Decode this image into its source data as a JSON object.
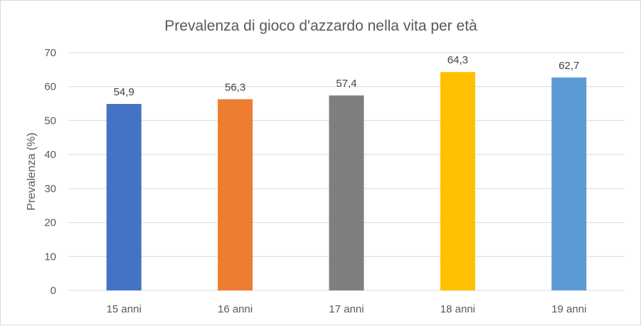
{
  "chart_data": {
    "type": "bar",
    "title": "Prevalenza di gioco d'azzardo nella vita per età",
    "ylabel": "Prevalenza (%)",
    "xlabel": "",
    "categories": [
      "15 anni",
      "16 anni",
      "17 anni",
      "18 anni",
      "19 anni"
    ],
    "values": [
      54.9,
      56.3,
      57.4,
      64.3,
      62.7
    ],
    "data_labels": [
      "54,9",
      "56,3",
      "57,4",
      "64,3",
      "62,7"
    ],
    "colors": [
      "#4472c4",
      "#ed7d31",
      "#7f7f7f",
      "#ffc000",
      "#5b9bd5"
    ],
    "ylim": [
      0,
      70
    ],
    "yticks": [
      0,
      10,
      20,
      30,
      40,
      50,
      60,
      70
    ],
    "grid": true,
    "legend": "none"
  }
}
